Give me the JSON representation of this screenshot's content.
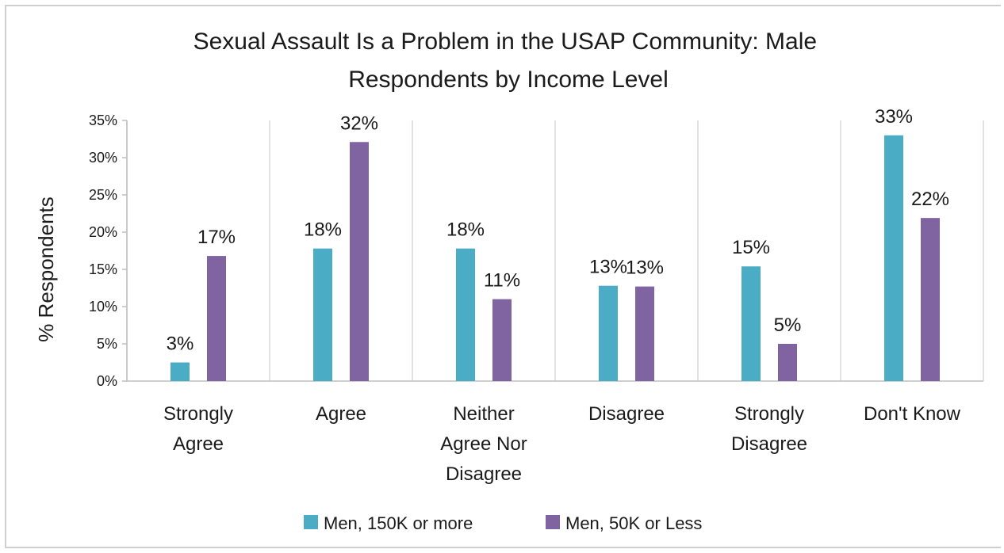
{
  "chart_data": {
    "type": "bar",
    "title": "Sexual Assault Is a Problem in the USAP Community: Male Respondents by Income Level",
    "title_lines": [
      "Sexual Assault Is a Problem in the USAP Community: Male",
      "Respondents by Income Level"
    ],
    "xlabel": "",
    "ylabel": "% Respondents",
    "ylim": [
      0,
      35
    ],
    "ytick_values": [
      0,
      5,
      10,
      15,
      20,
      25,
      30,
      35
    ],
    "ytick_labels": [
      "0%",
      "5%",
      "10%",
      "15%",
      "20%",
      "25%",
      "30%",
      "35%"
    ],
    "grid": "vertical category separators",
    "legend_position": "bottom",
    "categories": [
      "Strongly Agree",
      "Agree",
      "Neither Agree Nor Disagree",
      "Disagree",
      "Strongly Disagree",
      "Don't Know"
    ],
    "category_label_lines": [
      [
        "Strongly",
        "Agree"
      ],
      [
        "Agree"
      ],
      [
        "Neither",
        "Agree Nor",
        "Disagree"
      ],
      [
        "Disagree"
      ],
      [
        "Strongly",
        "Disagree"
      ],
      [
        "Don't Know"
      ]
    ],
    "series": [
      {
        "name": "Men, 150K or more",
        "color": "#4BACC6",
        "values": [
          2.5,
          17.8,
          17.8,
          12.8,
          15.4,
          33.0
        ],
        "labels": [
          "3%",
          "18%",
          "18%",
          "13%",
          "15%",
          "33%"
        ]
      },
      {
        "name": "Men, 50K or Less",
        "color": "#8064A2",
        "values": [
          16.8,
          32.1,
          11.0,
          12.7,
          5.0,
          21.9
        ],
        "labels": [
          "17%",
          "32%",
          "11%",
          "13%",
          "5%",
          "22%"
        ]
      }
    ]
  }
}
